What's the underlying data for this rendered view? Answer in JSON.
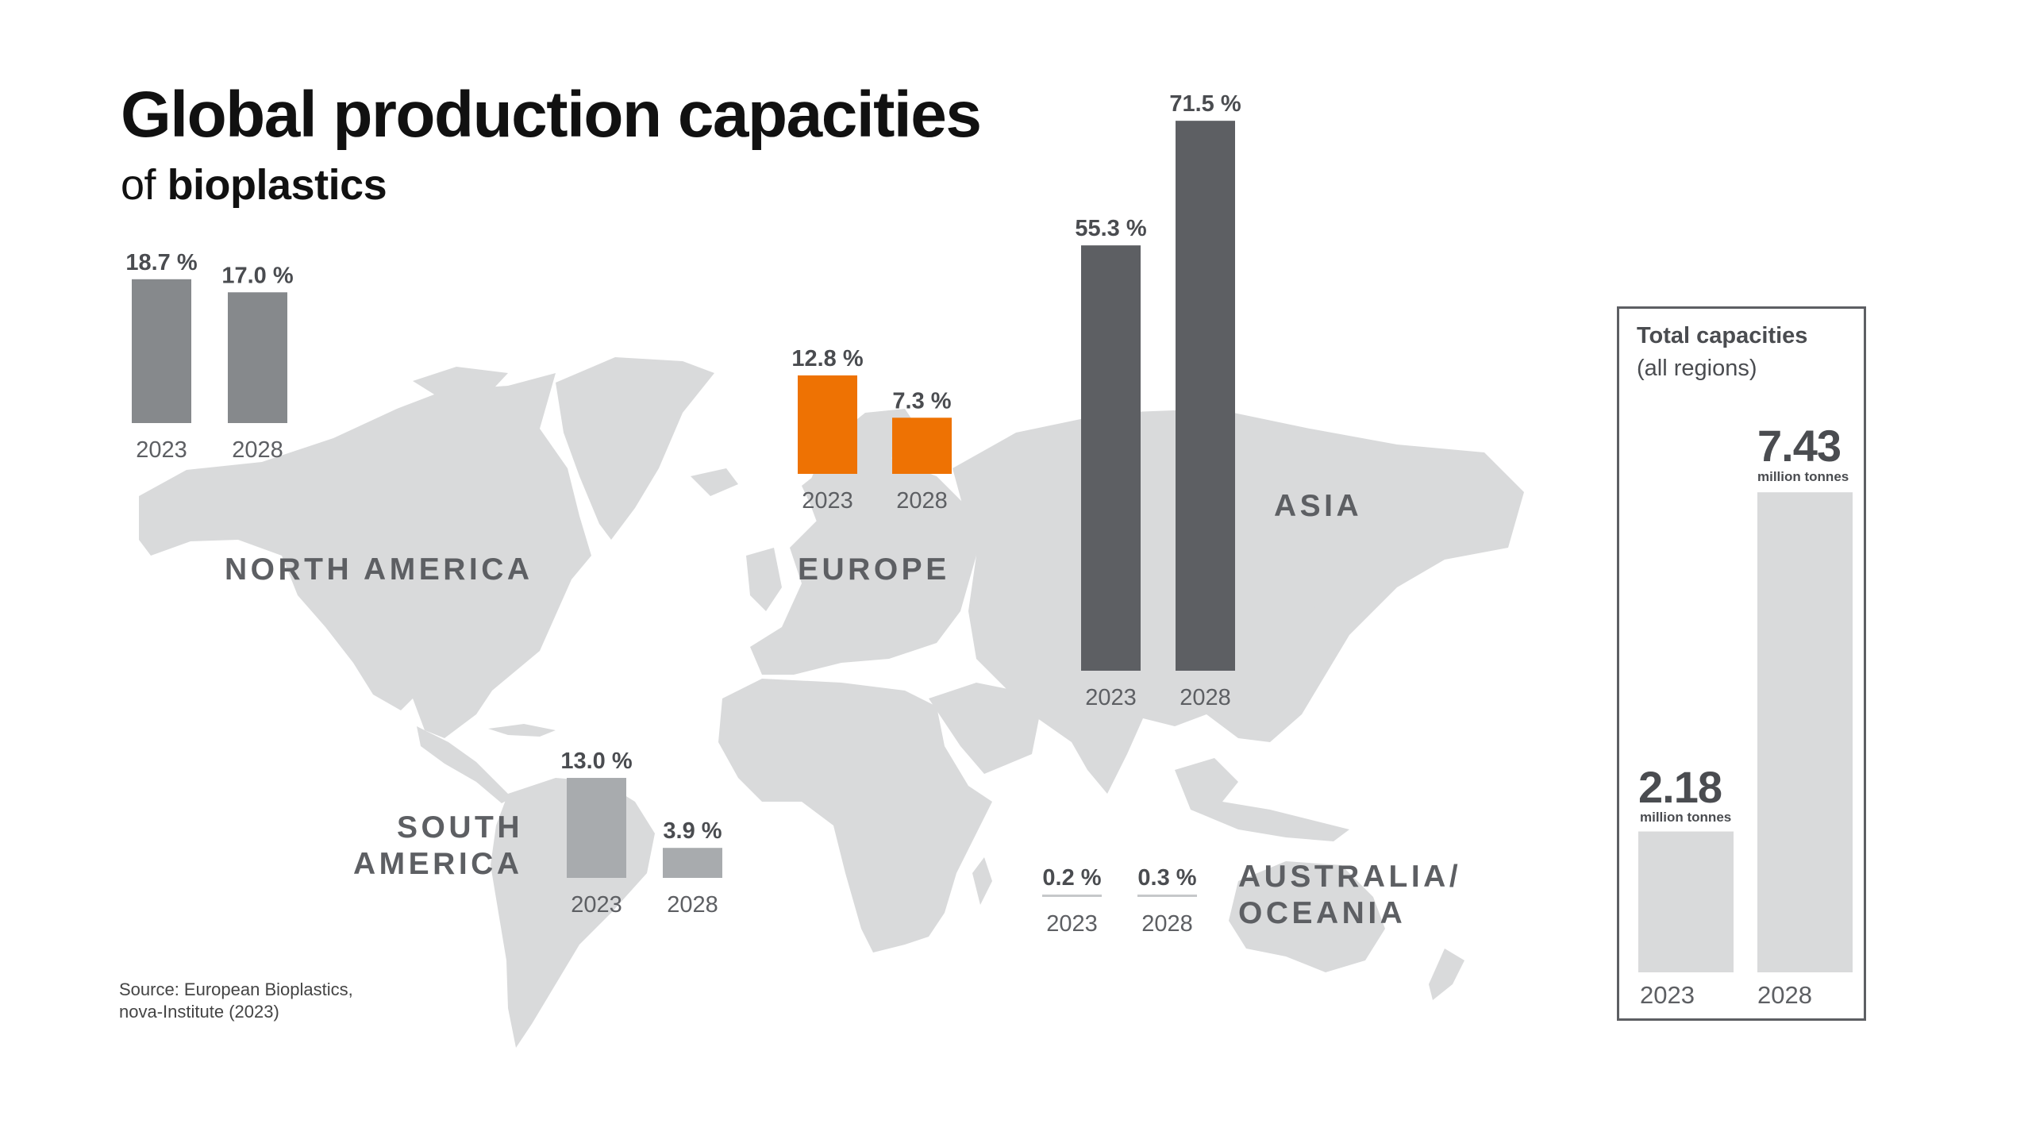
{
  "title": "Global production capacities",
  "subtitle_prefix": "of",
  "subtitle_bold": "bioplastics",
  "source_line1": "Source: European Bioplastics,",
  "source_line2": "nova-Institute (2023)",
  "colors": {
    "map": "#d9dadb",
    "north_america": "#86898c",
    "europe": "#ee7203",
    "asia": "#5d5f63",
    "south_america": "#a8abae",
    "oceania": "#c6c8ca",
    "label": "#5d5f63",
    "total_bar": "#d9dadb"
  },
  "chart_data": [
    {
      "type": "bar",
      "region": "NORTH AMERICA",
      "categories": [
        "2023",
        "2028"
      ],
      "values": [
        18.7,
        17.0
      ],
      "value_labels": [
        "18.7 %",
        "17.0 %"
      ],
      "unit": "%"
    },
    {
      "type": "bar",
      "region": "EUROPE",
      "categories": [
        "2023",
        "2028"
      ],
      "values": [
        12.8,
        7.3
      ],
      "value_labels": [
        "12.8 %",
        "7.3 %"
      ],
      "unit": "%"
    },
    {
      "type": "bar",
      "region": "ASIA",
      "categories": [
        "2023",
        "2028"
      ],
      "values": [
        55.3,
        71.5
      ],
      "value_labels": [
        "55.3 %",
        "71.5 %"
      ],
      "unit": "%"
    },
    {
      "type": "bar",
      "region": "SOUTH AMERICA",
      "categories": [
        "2023",
        "2028"
      ],
      "values": [
        13.0,
        3.9
      ],
      "value_labels": [
        "13.0 %",
        "3.9 %"
      ],
      "unit": "%"
    },
    {
      "type": "bar",
      "region": "AUSTRALIA/ OCEANIA",
      "categories": [
        "2023",
        "2028"
      ],
      "values": [
        0.2,
        0.3
      ],
      "value_labels": [
        "0.2 %",
        "0.3 %"
      ],
      "unit": "%"
    },
    {
      "type": "bar",
      "title": "Total capacities",
      "subtitle": "(all regions)",
      "categories": [
        "2023",
        "2028"
      ],
      "values": [
        2.18,
        7.43
      ],
      "value_labels": [
        "2.18",
        "7.43"
      ],
      "unit": "million tonnes"
    }
  ],
  "labels": {
    "north_america": "NORTH AMERICA",
    "europe": "EUROPE",
    "asia": "ASIA",
    "south_america_1": "SOUTH",
    "south_america_2": "AMERICA",
    "oceania_1": "AUSTRALIA/",
    "oceania_2": "OCEANIA"
  },
  "total": {
    "title": "Total capacities",
    "subtitle": "(all regions)",
    "value_2023": "2.18",
    "value_2028": "7.43",
    "unit": "million tonnes",
    "year_2023": "2023",
    "year_2028": "2028"
  }
}
